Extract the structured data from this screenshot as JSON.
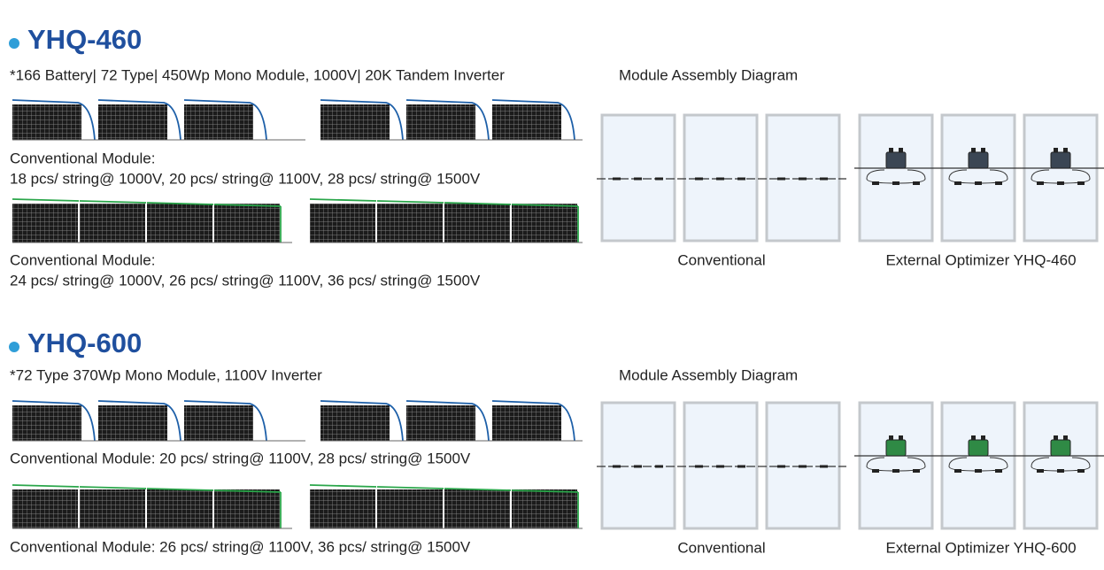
{
  "sections": [
    {
      "title": "YHQ-460",
      "spec": "*166 Battery| 72 Type| 450Wp Mono Module, 1000V| 20K Tandem Inverter",
      "assembly_title": "Module Assembly Diagram",
      "groups": [
        {
          "lines": [
            "Conventional Module:",
            "18 pcs/ string@ 1000V, 20 pcs/ string@ 1100V, 28 pcs/ string@ 1500V"
          ]
        },
        {
          "lines": [
            "Conventional Module:",
            "24 pcs/ string@ 1000V, 26 pcs/ string@ 1100V, 36 pcs/ string@ 1500V"
          ]
        }
      ],
      "captions": [
        "Conventional",
        "External Optimizer YHQ-460"
      ]
    },
    {
      "title": "YHQ-600",
      "spec": "*72 Type 370Wp Mono Module, 1100V Inverter",
      "assembly_title": "Module Assembly Diagram",
      "groups": [
        {
          "lines": [
            "Conventional Module: 20 pcs/ string@ 1100V, 28 pcs/ string@ 1500V"
          ]
        },
        {
          "lines": [
            "Conventional Module: 26 pcs/ string@ 1100V, 36 pcs/ string@ 1500V"
          ]
        }
      ],
      "captions": [
        "Conventional",
        "External Optimizer YHQ-600"
      ]
    }
  ]
}
